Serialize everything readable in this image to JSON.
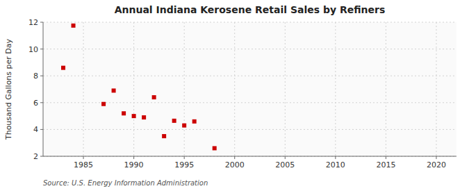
{
  "chart_data": {
    "type": "scatter",
    "title": "Annual Indiana Kerosene Retail Sales by Refiners",
    "ylabel": "Thousand Gallons per Day",
    "source": "Source: U.S. Energy Information Administration",
    "x": [
      1983,
      1984,
      1987,
      1988,
      1989,
      1990,
      1991,
      1992,
      1993,
      1994,
      1995,
      1996,
      1998
    ],
    "values": [
      8.6,
      11.75,
      5.9,
      6.9,
      5.2,
      5.0,
      4.9,
      6.4,
      3.5,
      4.65,
      4.3,
      4.6,
      2.6
    ],
    "color": "#cc0000",
    "marker": "square",
    "xlim": [
      1981,
      2022
    ],
    "ylim": [
      2,
      12
    ],
    "xticks": [
      1985,
      1990,
      1995,
      2000,
      2005,
      2010,
      2015,
      2020
    ],
    "yticks": [
      2,
      4,
      6,
      8,
      10,
      12
    ],
    "grid": true
  }
}
